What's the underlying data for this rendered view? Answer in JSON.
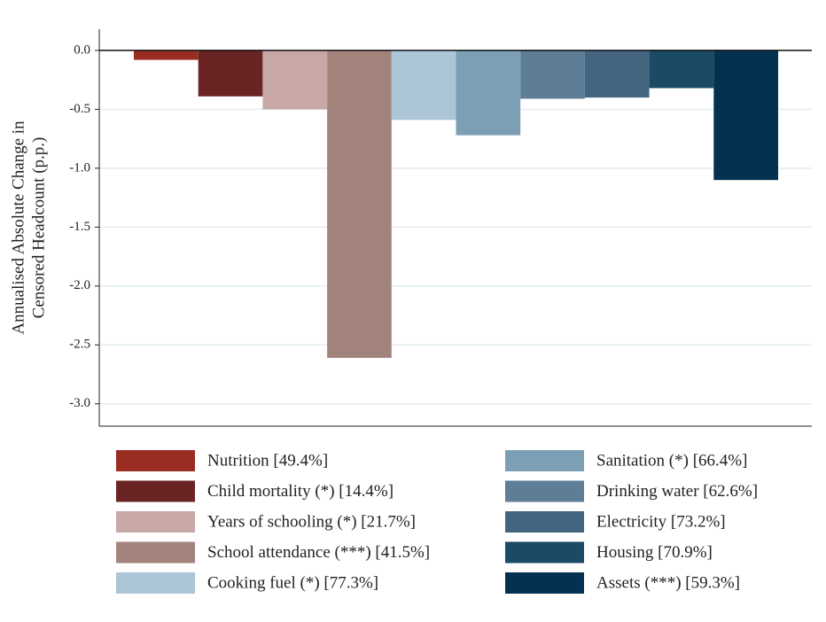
{
  "chart_data": {
    "type": "bar",
    "ylabel": [
      "Annualised Absolute Change in",
      "Censored Headcount (p.p.)"
    ],
    "categories": [
      "Nutrition [49.4%]",
      "Child mortality (*) [14.4%]",
      "Years of schooling (*) [21.7%]",
      "School attendance (***) [41.5%]",
      "Cooking fuel (*) [77.3%]",
      "Sanitation (*) [66.4%]",
      "Drinking water [62.6%]",
      "Electricity [73.2%]",
      "Housing [70.9%]",
      "Assets (***) [59.3%]"
    ],
    "values": [
      -0.08,
      -0.39,
      -0.5,
      -2.61,
      -0.59,
      -0.72,
      -0.41,
      -0.4,
      -0.32,
      -1.1
    ],
    "colors": [
      "#9a2d22",
      "#6b2424",
      "#c8a7a7",
      "#a3847d",
      "#adc6d7",
      "#7d9fb6",
      "#5e7e97",
      "#44657f",
      "#1a4a66",
      "#04314f"
    ],
    "ylim": [
      -3.19,
      0.18
    ],
    "yticks": [
      {
        "value": 0,
        "label": "0.0"
      },
      -0.5,
      {
        "value": -1,
        "label": "-1.0"
      },
      -1.5,
      {
        "value": -2,
        "label": "-2.0"
      },
      -2.5,
      {
        "value": -3,
        "label": "-3.0"
      }
    ],
    "grid": true
  }
}
